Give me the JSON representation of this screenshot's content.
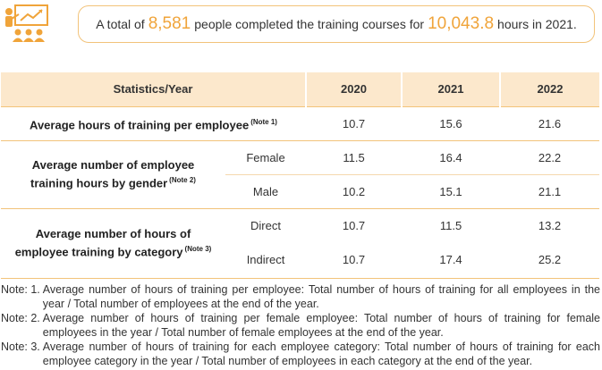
{
  "header": {
    "icon": "training-presentation-icon",
    "banner_prefix": "A total of",
    "people_count": "8,581",
    "banner_middle": "people completed the training courses for",
    "hours_total": "10,043.8",
    "banner_suffix": "hours in 2021.",
    "accent_color": "#f0a43a",
    "border_color": "#f2c37a",
    "header_bg": "#fce8cc"
  },
  "table": {
    "header": {
      "stat": "Statistics/Year",
      "y1": "2020",
      "y2": "2021",
      "y3": "2022"
    },
    "row1": {
      "label": "Average hours of training per employee",
      "note": "(Note 1)",
      "v1": "10.7",
      "v2": "15.6",
      "v3": "21.6"
    },
    "gender": {
      "label_line1": "Average number of employee",
      "label_line2": "training hours by gender",
      "note": "(Note 2)",
      "female": {
        "label": "Female",
        "v1": "11.5",
        "v2": "16.4",
        "v3": "22.2"
      },
      "male": {
        "label": "Male",
        "v1": "10.2",
        "v2": "15.1",
        "v3": "21.1"
      }
    },
    "category": {
      "label_line1": "Average number of hours of",
      "label_line2": "employee training by category",
      "note": "(Note 3)",
      "direct": {
        "label": "Direct",
        "v1": "10.7",
        "v2": "11.5",
        "v3": "13.2"
      },
      "indirect": {
        "label": "Indirect",
        "v1": "10.7",
        "v2": "17.4",
        "v3": "25.2"
      }
    }
  },
  "notes": [
    {
      "prefix": "Note: 1.",
      "text": "Average number of hours of training per employee: Total number of hours of training for all employees in the year / Total number of employees at the end of the year."
    },
    {
      "prefix": "Note: 2.",
      "text": "Average number of hours of training per female employee: Total number of hours of training for female employees in the year / Total number of female employees at the end of the year."
    },
    {
      "prefix": "Note: 3.",
      "text": "Average number of hours of training for each employee category: Total number of hours of training for each employee category in the year / Total number of employees in each category at the end of the year."
    }
  ]
}
